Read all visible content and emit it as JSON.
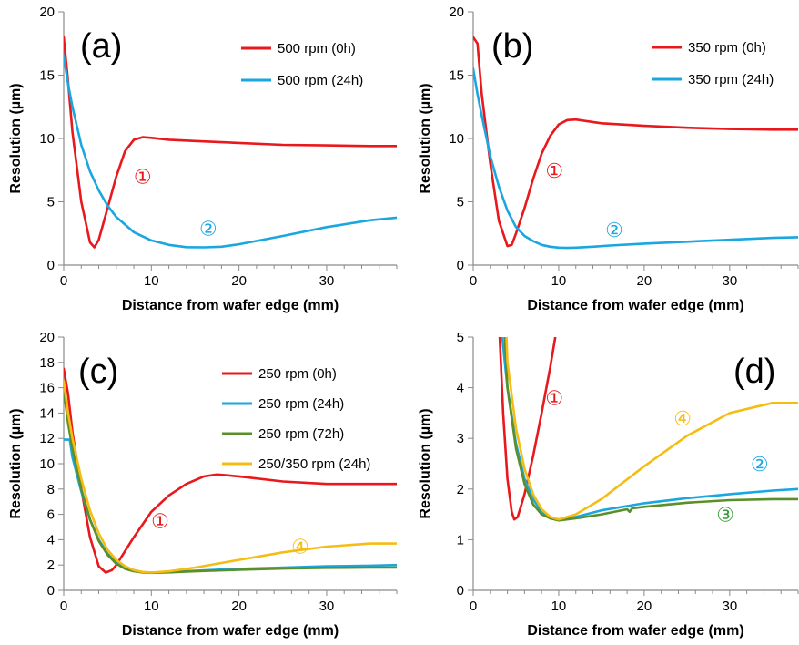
{
  "chart_data": [
    {
      "type": "line",
      "panel_label": "(a)",
      "xlabel": "Distance from wafer edge (mm)",
      "ylabel": "Resolution (µm)",
      "xlim": [
        0,
        38
      ],
      "ylim": [
        0,
        20
      ],
      "xticks": [
        0,
        10,
        20,
        30
      ],
      "yticks": [
        0,
        5,
        10,
        15,
        20
      ],
      "grid": false,
      "legend": "top-right",
      "series": [
        {
          "name": "500 rpm (0h)",
          "color": "#e8181c",
          "x": [
            0,
            0.5,
            1,
            2,
            3,
            3.5,
            4,
            5,
            6,
            7,
            8,
            9,
            10,
            12,
            15,
            20,
            25,
            30,
            35,
            38
          ],
          "y": [
            18.0,
            14.5,
            10.5,
            5.0,
            1.8,
            1.4,
            2.0,
            4.5,
            7.0,
            9.0,
            9.9,
            10.1,
            10.05,
            9.9,
            9.8,
            9.65,
            9.5,
            9.45,
            9.4,
            9.4
          ]
        },
        {
          "name": "500 rpm (24h)",
          "color": "#1aa7e0",
          "x": [
            0,
            0.5,
            1,
            2,
            3,
            4,
            5,
            6,
            8,
            10,
            12,
            14,
            16,
            18,
            20,
            25,
            30,
            35,
            38
          ],
          "y": [
            16.5,
            14.3,
            12.5,
            9.5,
            7.4,
            5.9,
            4.7,
            3.8,
            2.6,
            1.95,
            1.6,
            1.42,
            1.4,
            1.45,
            1.65,
            2.3,
            3.0,
            3.55,
            3.75
          ]
        }
      ],
      "annotations": [
        {
          "text": "①",
          "x": 9,
          "y": 7.0,
          "color": "#e8181c"
        },
        {
          "text": "②",
          "x": 16.5,
          "y": 2.9,
          "color": "#1aa7e0"
        }
      ]
    },
    {
      "type": "line",
      "panel_label": "(b)",
      "xlabel": "Distance from wafer edge (mm)",
      "ylabel": "Resolution (µm)",
      "xlim": [
        0,
        38
      ],
      "ylim": [
        0,
        20
      ],
      "xticks": [
        0,
        10,
        20,
        30
      ],
      "yticks": [
        0,
        5,
        10,
        15,
        20
      ],
      "grid": false,
      "legend": "top-right",
      "series": [
        {
          "name": "350 rpm (0h)",
          "color": "#e8181c",
          "x": [
            0,
            0.5,
            1,
            2,
            3,
            4,
            4.5,
            5,
            6,
            7,
            8,
            9,
            10,
            11,
            12,
            15,
            20,
            25,
            30,
            35,
            38
          ],
          "y": [
            18.0,
            17.5,
            13.5,
            8.0,
            3.5,
            1.5,
            1.6,
            2.5,
            4.5,
            6.8,
            8.8,
            10.2,
            11.1,
            11.45,
            11.5,
            11.2,
            11.0,
            10.85,
            10.75,
            10.7,
            10.7
          ]
        },
        {
          "name": "350 rpm (24h)",
          "color": "#1aa7e0",
          "x": [
            0,
            0.5,
            1,
            2,
            3,
            4,
            5,
            6,
            7,
            8,
            9,
            10,
            11,
            12,
            14,
            16,
            20,
            25,
            30,
            35,
            38
          ],
          "y": [
            15.5,
            13.5,
            11.8,
            8.6,
            6.2,
            4.3,
            3.0,
            2.3,
            1.9,
            1.6,
            1.45,
            1.38,
            1.36,
            1.38,
            1.45,
            1.55,
            1.7,
            1.85,
            2.0,
            2.15,
            2.2
          ]
        }
      ],
      "annotations": [
        {
          "text": "①",
          "x": 9.5,
          "y": 7.5,
          "color": "#e8181c"
        },
        {
          "text": "②",
          "x": 16.5,
          "y": 2.8,
          "color": "#1aa7e0"
        }
      ]
    },
    {
      "type": "line",
      "panel_label": "(c)",
      "xlabel": "Distance from wafer edge (mm)",
      "ylabel": "Resolution (µm)",
      "xlim": [
        0,
        38
      ],
      "ylim": [
        0,
        20
      ],
      "xticks": [
        0,
        10,
        20,
        30
      ],
      "yticks": [
        0,
        2,
        4,
        6,
        8,
        10,
        12,
        14,
        16,
        18,
        20
      ],
      "grid": false,
      "legend": "top-right",
      "series": [
        {
          "name": "250 rpm (0h)",
          "color": "#e8181c",
          "x": [
            0,
            0.5,
            1,
            2,
            3,
            4,
            4.8,
            5.5,
            6,
            7,
            8,
            10,
            12,
            14,
            16,
            17.5,
            20,
            25,
            30,
            35,
            38
          ],
          "y": [
            17.5,
            15.5,
            12.5,
            8.0,
            4.2,
            1.9,
            1.4,
            1.6,
            2.0,
            3.1,
            4.2,
            6.2,
            7.5,
            8.4,
            9.0,
            9.15,
            9.0,
            8.6,
            8.4,
            8.4,
            8.4
          ]
        },
        {
          "name": "250 rpm (24h)",
          "color": "#1aa7e0",
          "x": [
            0,
            0.3,
            0.7,
            1,
            2,
            3,
            4,
            5,
            6,
            7,
            8,
            9,
            10,
            12,
            15,
            20,
            25,
            30,
            35,
            38
          ],
          "y": [
            11.9,
            11.9,
            11.9,
            10.5,
            7.8,
            5.6,
            4.0,
            2.9,
            2.2,
            1.8,
            1.55,
            1.42,
            1.4,
            1.45,
            1.55,
            1.7,
            1.8,
            1.9,
            1.95,
            2.0
          ]
        },
        {
          "name": "250 rpm (72h)",
          "color": "#5a8f2a",
          "x": [
            0,
            0.5,
            1,
            2,
            3,
            4,
            5,
            6,
            7,
            8,
            9,
            10,
            12,
            15,
            20,
            25,
            30,
            35,
            38
          ],
          "y": [
            15.8,
            13.2,
            11.2,
            8.0,
            5.6,
            3.9,
            2.8,
            2.1,
            1.7,
            1.5,
            1.42,
            1.38,
            1.42,
            1.5,
            1.62,
            1.72,
            1.78,
            1.8,
            1.8
          ]
        },
        {
          "name": "250/350 rpm (24h)",
          "color": "#f5bd14",
          "x": [
            0,
            0.5,
            1,
            2,
            3,
            4,
            5,
            6,
            7,
            8,
            9,
            10,
            12,
            15,
            20,
            25,
            30,
            35,
            38
          ],
          "y": [
            16.5,
            14.0,
            12.0,
            8.8,
            6.3,
            4.5,
            3.2,
            2.4,
            1.9,
            1.6,
            1.45,
            1.4,
            1.5,
            1.8,
            2.4,
            3.0,
            3.45,
            3.7,
            3.7
          ]
        }
      ],
      "annotations": [
        {
          "text": "①",
          "x": 11,
          "y": 5.5,
          "color": "#e8181c"
        },
        {
          "text": "④",
          "x": 27,
          "y": 3.5,
          "color": "#f5bd14"
        }
      ]
    },
    {
      "type": "line",
      "panel_label": "(d)",
      "xlabel": "Distance from wafer edge (mm)",
      "ylabel": "Resolution (µm)",
      "xlim": [
        0,
        38
      ],
      "ylim": [
        0,
        5
      ],
      "xticks": [
        0,
        10,
        20,
        30
      ],
      "yticks": [
        0,
        1,
        2,
        3,
        4,
        5
      ],
      "grid": false,
      "series": [
        {
          "name": "",
          "color": "#e8181c",
          "x": [
            3.1,
            3.5,
            4,
            4.5,
            4.8,
            5.2,
            6,
            7,
            8,
            9,
            9.6
          ],
          "y": [
            5.0,
            3.5,
            2.2,
            1.55,
            1.4,
            1.45,
            1.9,
            2.65,
            3.5,
            4.4,
            5.0
          ]
        },
        {
          "name": "",
          "color": "#1aa7e0",
          "x": [
            3.4,
            4,
            5,
            6,
            7,
            8,
            9,
            10,
            12,
            15,
            20,
            25,
            30,
            35,
            38
          ],
          "y": [
            5.0,
            4.0,
            2.9,
            2.2,
            1.8,
            1.55,
            1.42,
            1.4,
            1.45,
            1.58,
            1.72,
            1.82,
            1.9,
            1.97,
            2.0
          ]
        },
        {
          "name": "",
          "color": "#5a8f2a",
          "x": [
            3.7,
            4,
            5,
            6,
            7,
            8,
            9,
            10,
            12,
            15,
            18,
            18.3,
            18.6,
            20,
            25,
            30,
            35,
            38
          ],
          "y": [
            5.0,
            4.0,
            2.8,
            2.1,
            1.7,
            1.5,
            1.42,
            1.38,
            1.42,
            1.5,
            1.6,
            1.55,
            1.62,
            1.65,
            1.73,
            1.78,
            1.8,
            1.8
          ]
        },
        {
          "name": "",
          "color": "#f5bd14",
          "x": [
            3.9,
            4,
            5,
            6,
            7,
            8,
            9,
            10,
            12,
            15,
            20,
            25,
            30,
            35,
            38
          ],
          "y": [
            5.0,
            4.5,
            3.2,
            2.4,
            1.9,
            1.6,
            1.45,
            1.4,
            1.5,
            1.8,
            2.45,
            3.05,
            3.5,
            3.7,
            3.7
          ]
        }
      ],
      "annotations": [
        {
          "text": "①",
          "x": 9.5,
          "y": 3.8,
          "color": "#e8181c"
        },
        {
          "text": "④",
          "x": 24.5,
          "y": 3.4,
          "color": "#f5bd14"
        },
        {
          "text": "②",
          "x": 33.5,
          "y": 2.5,
          "color": "#1aa7e0"
        },
        {
          "text": "③",
          "x": 29.5,
          "y": 1.5,
          "color": "#3b9a3b"
        }
      ]
    }
  ]
}
